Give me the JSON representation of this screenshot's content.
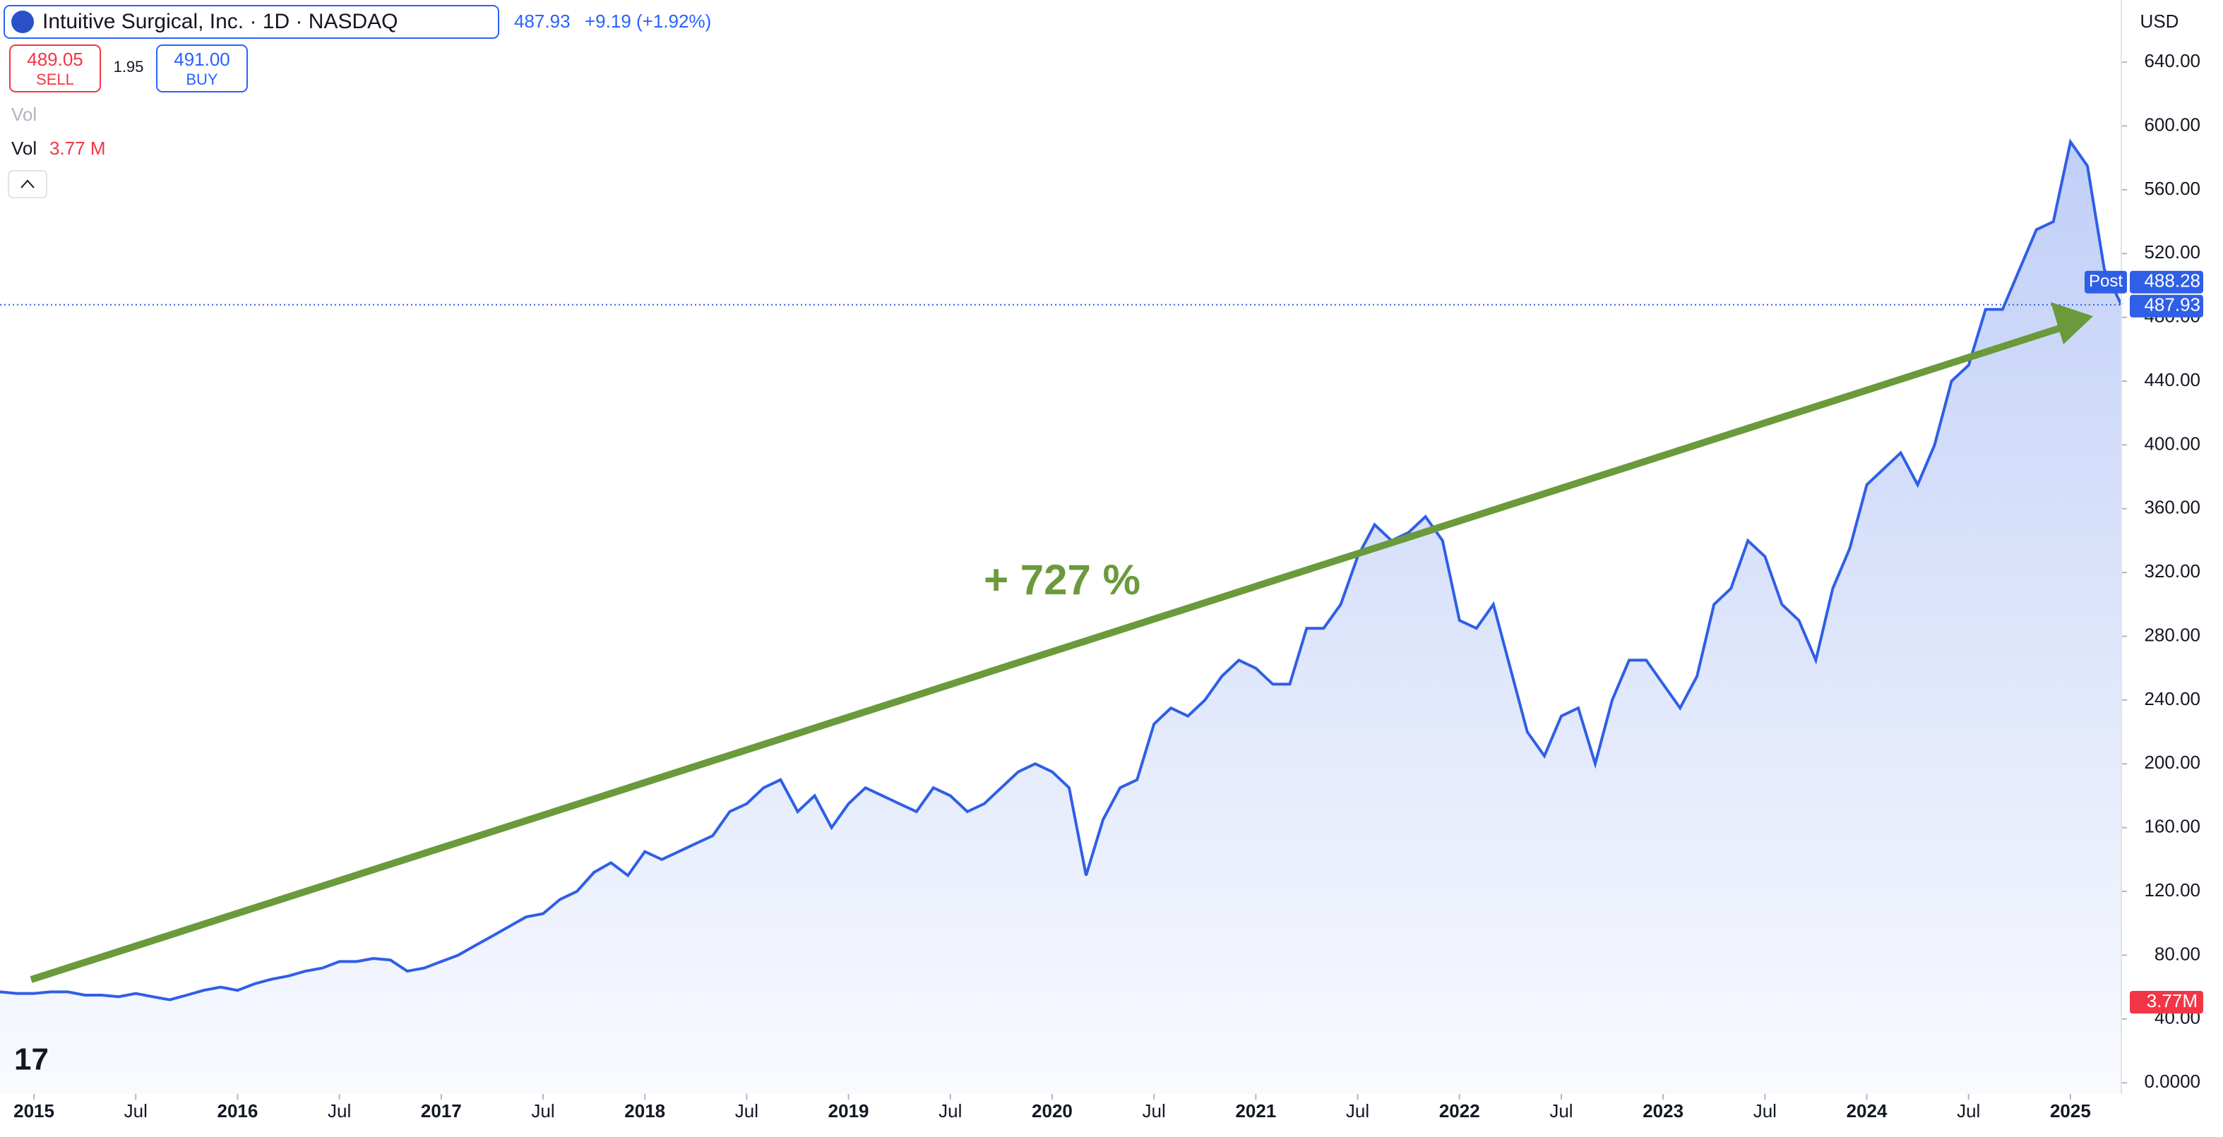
{
  "header": {
    "symbol_title": "Intuitive Surgical, Inc. · 1D · NASDAQ",
    "last": "487.93",
    "change": "+9.19 (+1.92%)",
    "sell_price": "489.05",
    "sell_label": "SELL",
    "spread": "1.95",
    "buy_price": "491.00",
    "buy_label": "BUY",
    "vol_hidden": "Vol",
    "vol_label": "Vol",
    "vol_value": "3.77 M",
    "currency": "USD"
  },
  "chart_data": {
    "type": "line",
    "annotation": "+ 727 %",
    "color": "#2f5fe6",
    "x": [
      "2014-11",
      "2014-12",
      "2015-01",
      "2015-02",
      "2015-03",
      "2015-04",
      "2015-05",
      "2015-06",
      "2015-07",
      "2015-08",
      "2015-09",
      "2015-10",
      "2015-11",
      "2015-12",
      "2016-01",
      "2016-02",
      "2016-03",
      "2016-04",
      "2016-05",
      "2016-06",
      "2016-07",
      "2016-08",
      "2016-09",
      "2016-10",
      "2016-11",
      "2016-12",
      "2017-01",
      "2017-02",
      "2017-03",
      "2017-04",
      "2017-05",
      "2017-06",
      "2017-07",
      "2017-08",
      "2017-09",
      "2017-10",
      "2017-11",
      "2017-12",
      "2018-01",
      "2018-02",
      "2018-03",
      "2018-04",
      "2018-05",
      "2018-06",
      "2018-07",
      "2018-08",
      "2018-09",
      "2018-10",
      "2018-11",
      "2018-12",
      "2019-01",
      "2019-02",
      "2019-03",
      "2019-04",
      "2019-05",
      "2019-06",
      "2019-07",
      "2019-08",
      "2019-09",
      "2019-10",
      "2019-11",
      "2019-12",
      "2020-01",
      "2020-02",
      "2020-03",
      "2020-04",
      "2020-05",
      "2020-06",
      "2020-07",
      "2020-08",
      "2020-09",
      "2020-10",
      "2020-11",
      "2020-12",
      "2021-01",
      "2021-02",
      "2021-03",
      "2021-04",
      "2021-05",
      "2021-06",
      "2021-07",
      "2021-08",
      "2021-09",
      "2021-10",
      "2021-11",
      "2021-12",
      "2022-01",
      "2022-02",
      "2022-03",
      "2022-04",
      "2022-05",
      "2022-06",
      "2022-07",
      "2022-08",
      "2022-09",
      "2022-10",
      "2022-11",
      "2022-12",
      "2023-01",
      "2023-02",
      "2023-03",
      "2023-04",
      "2023-05",
      "2023-06",
      "2023-07",
      "2023-08",
      "2023-09",
      "2023-10",
      "2023-11",
      "2023-12",
      "2024-01",
      "2024-02",
      "2024-03",
      "2024-04",
      "2024-05",
      "2024-06",
      "2024-07",
      "2024-08",
      "2024-09",
      "2024-10",
      "2024-11",
      "2024-12",
      "2025-01",
      "2025-02",
      "2025-03",
      "2025-04"
    ],
    "values": [
      57,
      56,
      56,
      57,
      57,
      55,
      55,
      54,
      56,
      54,
      52,
      55,
      58,
      60,
      58,
      62,
      65,
      67,
      70,
      72,
      76,
      76,
      78,
      77,
      70,
      72,
      76,
      80,
      86,
      92,
      98,
      104,
      106,
      115,
      120,
      132,
      138,
      130,
      145,
      140,
      145,
      150,
      155,
      170,
      175,
      185,
      190,
      170,
      180,
      160,
      175,
      185,
      180,
      175,
      170,
      185,
      180,
      170,
      175,
      185,
      195,
      200,
      195,
      185,
      130,
      165,
      185,
      190,
      225,
      235,
      230,
      240,
      255,
      265,
      260,
      250,
      250,
      285,
      285,
      300,
      330,
      350,
      340,
      345,
      355,
      340,
      290,
      285,
      300,
      260,
      220,
      205,
      230,
      235,
      200,
      240,
      265,
      265,
      250,
      235,
      255,
      300,
      310,
      340,
      330,
      300,
      290,
      265,
      310,
      335,
      375,
      385,
      395,
      375,
      400,
      440,
      450,
      485,
      485,
      510,
      535,
      540,
      590,
      575,
      510,
      488
    ],
    "xlim": [
      "2014-11",
      "2025-04"
    ],
    "xticks": [
      {
        "value": "2015-01",
        "label": "2015"
      },
      {
        "value": "2015-07",
        "label": "Jul"
      },
      {
        "value": "2016-01",
        "label": "2016"
      },
      {
        "value": "2016-07",
        "label": "Jul"
      },
      {
        "value": "2017-01",
        "label": "2017"
      },
      {
        "value": "2017-07",
        "label": "Jul"
      },
      {
        "value": "2018-01",
        "label": "2018"
      },
      {
        "value": "2018-07",
        "label": "Jul"
      },
      {
        "value": "2019-01",
        "label": "2019"
      },
      {
        "value": "2019-07",
        "label": "Jul"
      },
      {
        "value": "2020-01",
        "label": "2020"
      },
      {
        "value": "2020-07",
        "label": "Jul"
      },
      {
        "value": "2021-01",
        "label": "2021"
      },
      {
        "value": "2021-07",
        "label": "Jul"
      },
      {
        "value": "2022-01",
        "label": "2022"
      },
      {
        "value": "2022-07",
        "label": "Jul"
      },
      {
        "value": "2023-01",
        "label": "2023"
      },
      {
        "value": "2023-07",
        "label": "Jul"
      },
      {
        "value": "2024-01",
        "label": "2024"
      },
      {
        "value": "2024-07",
        "label": "Jul"
      },
      {
        "value": "2025-01",
        "label": "2025"
      }
    ],
    "ylim": [
      -7,
      679
    ],
    "yticks": [
      {
        "value": 0,
        "label": "0.0000"
      },
      {
        "value": 40,
        "label": "40.00"
      },
      {
        "value": 80,
        "label": "80.00"
      },
      {
        "value": 120,
        "label": "120.00"
      },
      {
        "value": 160,
        "label": "160.00"
      },
      {
        "value": 200,
        "label": "200.00"
      },
      {
        "value": 240,
        "label": "240.00"
      },
      {
        "value": 280,
        "label": "280.00"
      },
      {
        "value": 320,
        "label": "320.00"
      },
      {
        "value": 360,
        "label": "360.00"
      },
      {
        "value": 400,
        "label": "400.00"
      },
      {
        "value": 440,
        "label": "440.00"
      },
      {
        "value": 480,
        "label": "480.00"
      },
      {
        "value": 520,
        "label": "520.00"
      },
      {
        "value": 560,
        "label": "560.00"
      },
      {
        "value": 600,
        "label": "600.00"
      },
      {
        "value": 640,
        "label": "640.00"
      }
    ],
    "post_label": "Post",
    "post_price": 488.28,
    "last_price": 487.93,
    "volume_badge": "3.77M"
  }
}
